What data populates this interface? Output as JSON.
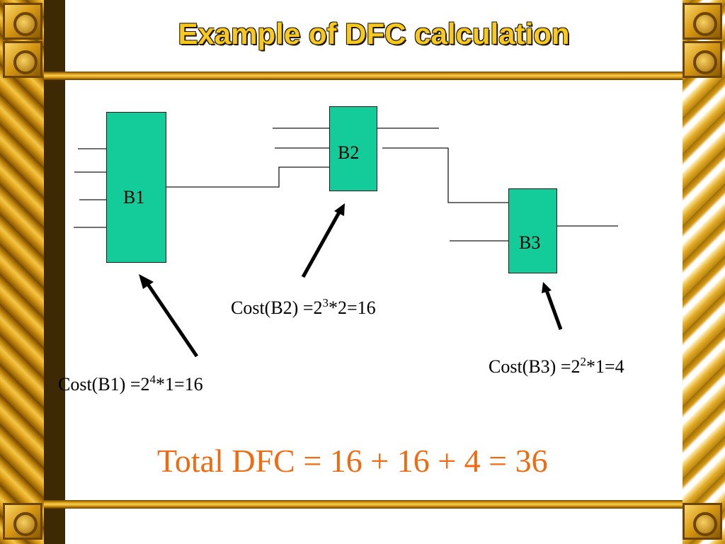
{
  "title": "Example of DFC calculation",
  "blocks": {
    "b1": "B1",
    "b2": "B2",
    "b3": "B3"
  },
  "costs": {
    "b1": {
      "prefix": "Cost(B1) =2",
      "exp": "4",
      "suffix": "*1=16"
    },
    "b2": {
      "prefix": "Cost(B2) =2",
      "exp": "3",
      "suffix": "*2=16"
    },
    "b3": {
      "prefix": "Cost(B3) =2",
      "exp": "2",
      "suffix": "*1=4"
    }
  },
  "total": "Total DFC = 16 + 16 + 4 = 36",
  "colors": {
    "block_fill": "#13cc99",
    "total_text": "#f06a10",
    "title_text": "#f7c91c"
  }
}
